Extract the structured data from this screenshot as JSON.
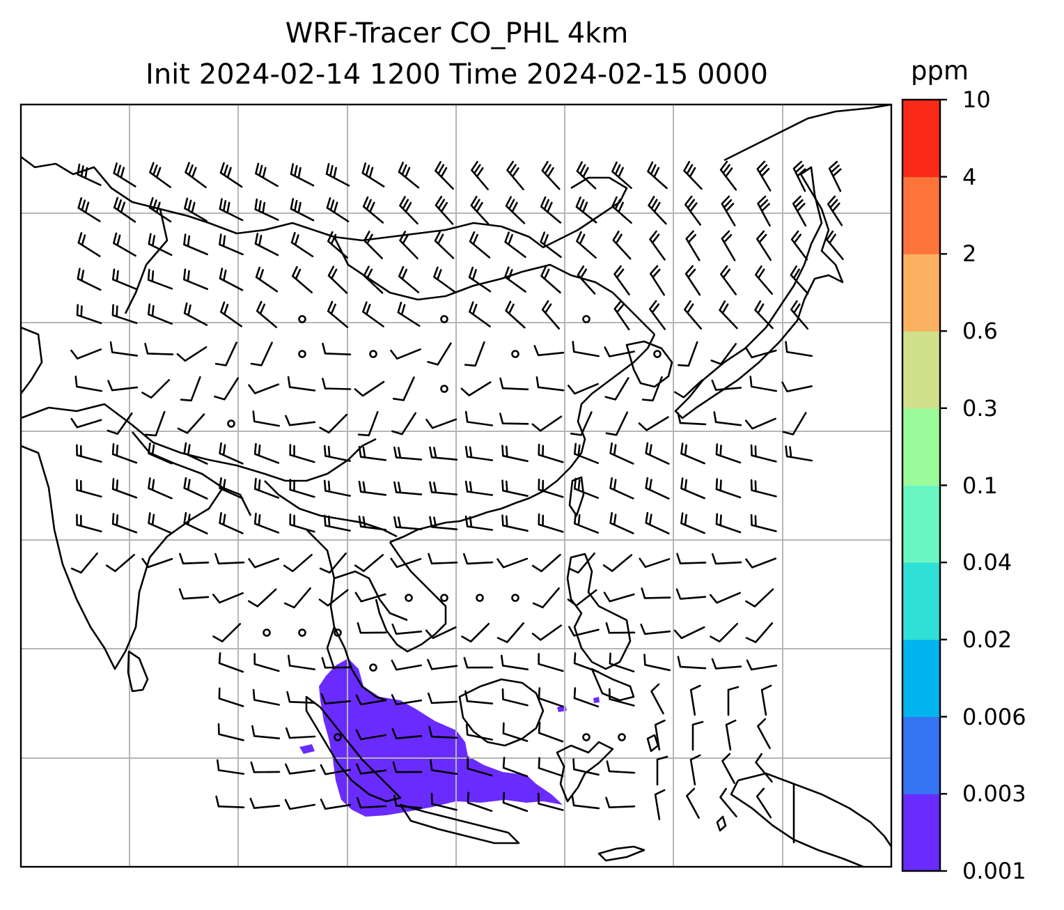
{
  "title": {
    "line1": "WRF-Tracer CO_PHL 4km",
    "line2": "Init 2024-02-14 1200 Time 2024-02-15 0000"
  },
  "colorbar": {
    "unit": "ppm",
    "levels": [
      "0.001",
      "0.003",
      "0.006",
      "0.02",
      "0.04",
      "0.1",
      "0.3",
      "0.6",
      "2",
      "4",
      "10"
    ],
    "colors": [
      "#6a2bff",
      "#3574f2",
      "#00b4ee",
      "#2fe0d4",
      "#6af6c2",
      "#9afb9a",
      "#d1e08a",
      "#fbb060",
      "#fc743a",
      "#fa2918"
    ]
  },
  "map": {
    "plume_color": "#6a2bff",
    "gridlines": true,
    "wind_barbs": true
  }
}
